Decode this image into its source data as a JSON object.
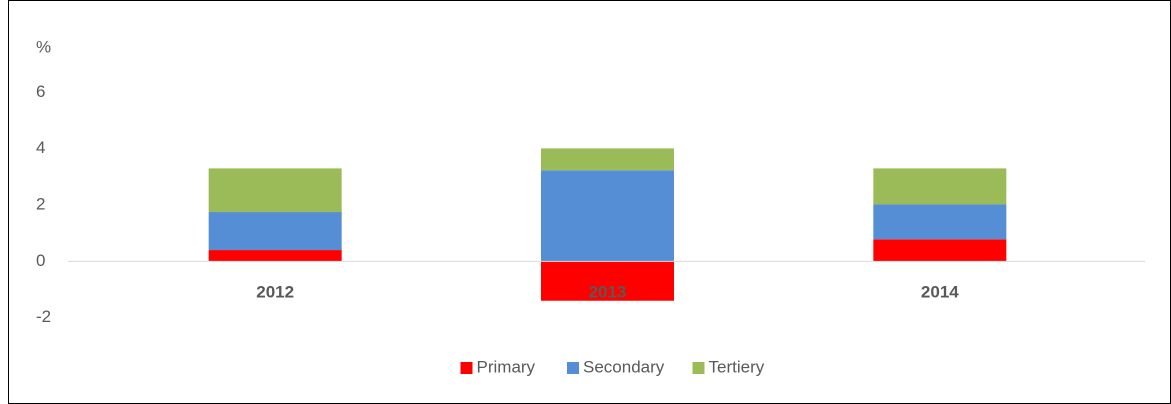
{
  "chart_data": {
    "type": "stacked_bar",
    "y_label": "%",
    "categories": [
      "2012",
      "2013",
      "2014"
    ],
    "series": [
      {
        "name": "Primary",
        "color": "#ff0000",
        "values": [
          0.4,
          -1.4,
          0.78
        ]
      },
      {
        "name": "Secondary",
        "color": "#558ed5",
        "values": [
          1.35,
          3.23,
          1.24
        ]
      },
      {
        "name": "Tertiery",
        "color": "#9bbb59",
        "values": [
          1.55,
          0.78,
          1.28
        ]
      }
    ],
    "ylim": [
      -3,
      7
    ],
    "yticks": [
      -2,
      0,
      2,
      4,
      6
    ],
    "grid": false,
    "legend": "bottom"
  }
}
